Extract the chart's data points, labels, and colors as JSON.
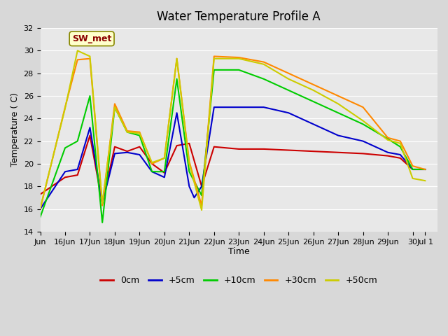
{
  "title": "Water Temperature Profile A",
  "xlabel": "Time",
  "ylabel": "Temperature ( C)",
  "ylim": [
    14,
    32
  ],
  "background_color": "#e8e8e8",
  "plot_bg_color": "#e8e8e8",
  "annotation_label": "SW_met",
  "series": {
    "0cm": {
      "color": "#cc0000",
      "linewidth": 1.5,
      "x": [
        15,
        16,
        16.5,
        17,
        17.5,
        18,
        18.5,
        19,
        19.5,
        20,
        20.5,
        21,
        21.5,
        22,
        23,
        24,
        25,
        26,
        27,
        28,
        29,
        29.5,
        30,
        30.5
      ],
      "y": [
        17.3,
        18.8,
        19.0,
        22.5,
        16.5,
        21.5,
        21.1,
        21.5,
        20.0,
        19.2,
        21.6,
        21.8,
        18.0,
        21.5,
        21.3,
        21.3,
        21.2,
        21.1,
        21.0,
        20.9,
        20.7,
        20.5,
        19.5,
        19.5
      ]
    },
    "+5cm": {
      "color": "#0000cc",
      "linewidth": 1.5,
      "x": [
        15,
        16,
        16.5,
        17,
        17.5,
        18,
        18.5,
        19,
        19.5,
        20,
        20.5,
        21,
        21.2,
        21.5,
        22,
        23,
        24,
        25,
        26,
        27,
        28,
        29,
        29.5,
        30,
        30.5
      ],
      "y": [
        16.0,
        19.3,
        19.5,
        23.2,
        16.5,
        20.9,
        21.0,
        20.8,
        19.3,
        18.8,
        24.5,
        18.0,
        17.0,
        18.0,
        25.0,
        25.0,
        25.0,
        24.5,
        23.5,
        22.5,
        22.0,
        21.0,
        20.8,
        19.5,
        19.5
      ]
    },
    "+10cm": {
      "color": "#00cc00",
      "linewidth": 1.5,
      "x": [
        15,
        16,
        16.5,
        17,
        17.5,
        18,
        18.5,
        19,
        19.5,
        20,
        20.5,
        21,
        21.5,
        22,
        23,
        24,
        25,
        26,
        27,
        28,
        29,
        29.5,
        30,
        30.5
      ],
      "y": [
        15.3,
        21.4,
        22.0,
        26.0,
        14.8,
        25.0,
        22.8,
        22.5,
        19.3,
        19.3,
        27.5,
        19.3,
        17.2,
        28.3,
        28.3,
        27.5,
        26.5,
        25.5,
        24.5,
        23.5,
        22.2,
        21.5,
        19.5,
        19.5
      ]
    },
    "+30cm": {
      "color": "#ff8800",
      "linewidth": 1.5,
      "x": [
        15,
        16,
        16.5,
        17,
        17.5,
        18,
        18.5,
        19,
        19.5,
        20,
        20.5,
        21,
        21.5,
        22,
        23,
        24,
        25,
        26,
        27,
        28,
        29,
        29.5,
        30,
        30.5
      ],
      "y": [
        16.0,
        25.0,
        29.2,
        29.3,
        16.3,
        25.3,
        22.9,
        22.8,
        20.0,
        20.5,
        29.3,
        20.2,
        16.3,
        29.5,
        29.4,
        29.0,
        28.0,
        27.0,
        26.0,
        25.0,
        22.3,
        22.0,
        19.8,
        19.5
      ]
    },
    "+50cm": {
      "color": "#cccc00",
      "linewidth": 1.5,
      "x": [
        15,
        16,
        16.5,
        17,
        17.5,
        18,
        18.5,
        19,
        19.5,
        20,
        20.5,
        21,
        21.5,
        22,
        23,
        24,
        25,
        26,
        27,
        28,
        29,
        29.5,
        30,
        30.5
      ],
      "y": [
        16.1,
        24.9,
        30.0,
        29.5,
        16.5,
        25.0,
        22.8,
        22.7,
        20.1,
        20.5,
        29.3,
        20.0,
        15.9,
        29.3,
        29.3,
        28.8,
        27.5,
        26.5,
        25.3,
        23.8,
        22.1,
        21.8,
        18.7,
        18.5
      ]
    }
  },
  "xticks": {
    "values": [
      15,
      16,
      17,
      18,
      19,
      20,
      21,
      22,
      23,
      24,
      25,
      26,
      27,
      28,
      29,
      30,
      30.5
    ],
    "labels": [
      "Jun",
      "16Jun",
      "17Jun",
      "18Jun",
      "19Jun",
      "20Jun",
      "21Jun",
      "22Jun",
      "23Jun",
      "24Jun",
      "25Jun",
      "26Jun",
      "27Jun",
      "28Jun",
      "29Jun",
      "30",
      "Jul 1"
    ]
  },
  "yticks": [
    14,
    16,
    18,
    20,
    22,
    24,
    26,
    28,
    30,
    32
  ],
  "legend": [
    {
      "label": "0cm",
      "color": "#cc0000"
    },
    {
      "label": "+5cm",
      "color": "#0000cc"
    },
    {
      "label": "+10cm",
      "color": "#00cc00"
    },
    {
      "label": "+30cm",
      "color": "#ff8800"
    },
    {
      "label": "+50cm",
      "color": "#cccc00"
    }
  ]
}
